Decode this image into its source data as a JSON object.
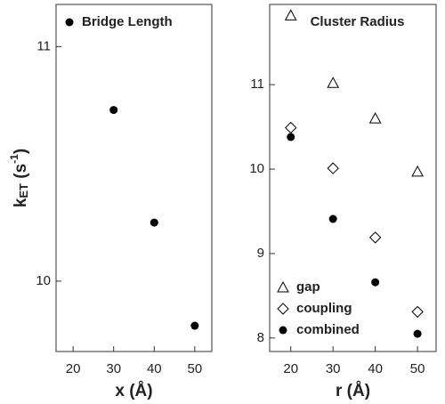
{
  "chart_data": [
    {
      "type": "scatter",
      "title": "Bridge Length",
      "x_label": "x (Å)",
      "y_label": [
        "k",
        "ET",
        " (s",
        "-1",
        ")"
      ],
      "xlim": [
        15.8,
        54.2
      ],
      "xticks": [
        20,
        30,
        40,
        50
      ],
      "ylim": [
        9.7,
        11.18
      ],
      "yticks": [
        10,
        11
      ],
      "series": [
        {
          "name": "Bridge Length",
          "color": "#000000",
          "marker": "circle",
          "x": [
            30,
            40,
            50
          ],
          "values": [
            10.73,
            10.25,
            9.81
          ]
        }
      ]
    },
    {
      "type": "scatter",
      "title": "Cluster Radius",
      "x_label": "r (Å)",
      "xlim": [
        15,
        54.4
      ],
      "xticks": [
        20,
        30,
        40,
        50
      ],
      "ylim": [
        7.84,
        11.95
      ],
      "yticks": [
        8,
        9,
        10,
        11
      ],
      "legend": "lower left",
      "series": [
        {
          "name": "gap",
          "color": "#000000",
          "marker": "triangle",
          "x": [
            20,
            30,
            40,
            50
          ],
          "values": [
            11.82,
            11.02,
            10.6,
            9.97
          ]
        },
        {
          "name": "coupling",
          "color": "#000000",
          "marker": "diamond",
          "x": [
            20,
            30,
            40,
            50
          ],
          "values": [
            10.49,
            10.01,
            9.19,
            8.31
          ]
        },
        {
          "name": "combined",
          "color": "#000000",
          "marker": "circle",
          "x": [
            20,
            30,
            40,
            50
          ],
          "values": [
            10.38,
            9.41,
            8.66,
            8.05
          ]
        }
      ]
    }
  ]
}
